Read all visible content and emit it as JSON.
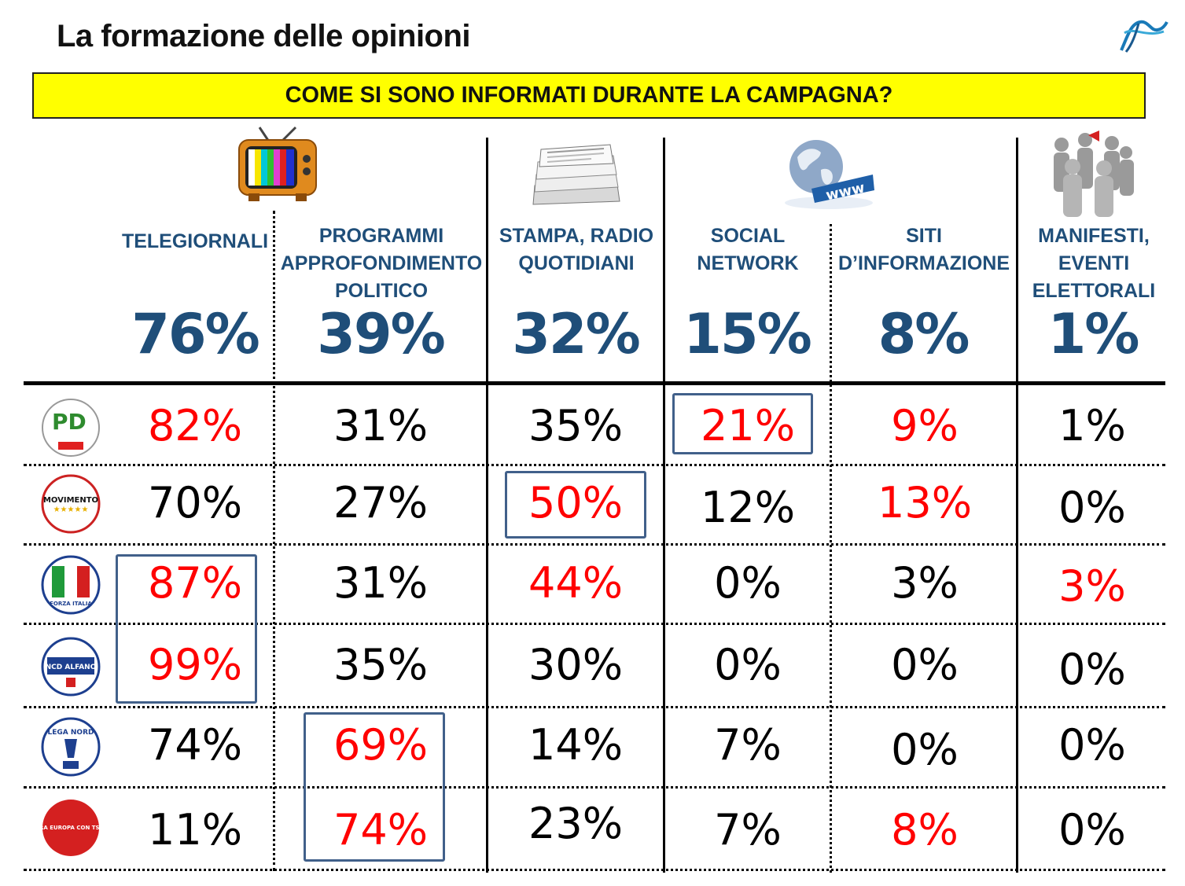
{
  "title": "La formazione delle opinioni",
  "question": "COME SI SONO INFORMATI DURANTE LA CAMPAGNA?",
  "colors": {
    "header_blue": "#1f4e79",
    "highlight": "#ff0000",
    "normal": "#000000",
    "banner": "#ffff00",
    "box": "#41608a"
  },
  "columns": [
    {
      "label_lines": [
        "TELEGIORNALI"
      ],
      "total": "76%",
      "icon": "tv-icon"
    },
    {
      "label_lines": [
        "PROGRAMMI",
        "APPROFONDIMENTO",
        "POLITICO"
      ],
      "total": "39%",
      "icon": ""
    },
    {
      "label_lines": [
        "STAMPA, RADIO",
        "QUOTIDIANI"
      ],
      "total": "32%",
      "icon": "newspaper-icon"
    },
    {
      "label_lines": [
        "SOCIAL",
        "NETWORK"
      ],
      "total": "15%",
      "icon": "globe-www-icon"
    },
    {
      "label_lines": [
        "SITI",
        "D’INFORMAZIONE"
      ],
      "total": "8%",
      "icon": ""
    },
    {
      "label_lines": [
        "MANIFESTI,",
        "EVENTI",
        "ELETTORALI"
      ],
      "total": "1%",
      "icon": "people-megaphone-icon"
    }
  ],
  "rows": [
    {
      "party": "PD",
      "logo_text": "PD",
      "values": [
        "82%",
        "31%",
        "35%",
        "21%",
        "9%",
        "1%"
      ],
      "red": [
        true,
        false,
        false,
        true,
        true,
        false
      ]
    },
    {
      "party": "Movimento 5 Stelle",
      "logo_text": "MOVIMENTO",
      "values": [
        "70%",
        "27%",
        "50%",
        "12%",
        "13%",
        "0%"
      ],
      "red": [
        false,
        false,
        true,
        false,
        true,
        false
      ]
    },
    {
      "party": "Forza Italia",
      "logo_text": "FORZA ITALIA",
      "values": [
        "87%",
        "31%",
        "44%",
        "0%",
        "3%",
        "3%"
      ],
      "red": [
        true,
        false,
        true,
        false,
        false,
        true
      ]
    },
    {
      "party": "NCD Alfano",
      "logo_text": "NCD ALFANO",
      "values": [
        "99%",
        "35%",
        "30%",
        "0%",
        "0%",
        "0%"
      ],
      "red": [
        true,
        false,
        false,
        false,
        false,
        false
      ]
    },
    {
      "party": "Lega Nord",
      "logo_text": "LEGA NORD",
      "values": [
        "74%",
        "69%",
        "14%",
        "7%",
        "0%",
        "0%"
      ],
      "red": [
        false,
        true,
        false,
        false,
        false,
        false
      ]
    },
    {
      "party": "L'Altra Europa con Tsipras",
      "logo_text": "L'ALTRA EUROPA CON TSIPRAS",
      "values": [
        "11%",
        "74%",
        "23%",
        "7%",
        "8%",
        "0%"
      ],
      "red": [
        false,
        true,
        false,
        false,
        true,
        false
      ]
    }
  ]
}
